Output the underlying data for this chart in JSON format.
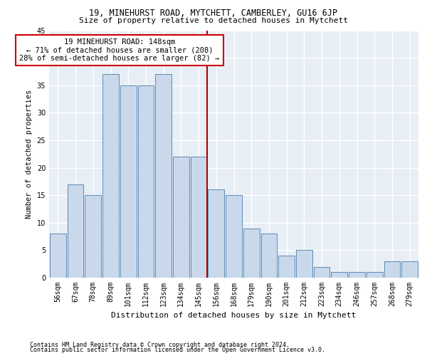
{
  "title1": "19, MINEHURST ROAD, MYTCHETT, CAMBERLEY, GU16 6JP",
  "title2": "Size of property relative to detached houses in Mytchett",
  "xlabel": "Distribution of detached houses by size in Mytchett",
  "ylabel": "Number of detached properties",
  "footer1": "Contains HM Land Registry data © Crown copyright and database right 2024.",
  "footer2": "Contains public sector information licensed under the Open Government Licence v3.0.",
  "categories": [
    "56sqm",
    "67sqm",
    "78sqm",
    "89sqm",
    "101sqm",
    "112sqm",
    "123sqm",
    "134sqm",
    "145sqm",
    "156sqm",
    "168sqm",
    "179sqm",
    "190sqm",
    "201sqm",
    "212sqm",
    "223sqm",
    "234sqm",
    "246sqm",
    "257sqm",
    "268sqm",
    "279sqm"
  ],
  "values": [
    8,
    17,
    15,
    37,
    35,
    35,
    37,
    22,
    22,
    16,
    15,
    9,
    8,
    4,
    5,
    2,
    1,
    1,
    1,
    3,
    3
  ],
  "bar_color": "#c9d9eb",
  "bar_edgecolor": "#5b8ab5",
  "bg_color": "#e8eef5",
  "grid_color": "#ffffff",
  "vline_x": 8.5,
  "vline_color": "#aa0000",
  "annotation_text": "19 MINEHURST ROAD: 148sqm\n← 71% of detached houses are smaller (208)\n28% of semi-detached houses are larger (82) →",
  "annotation_box_color": "#ffffff",
  "annotation_box_edgecolor": "#cc0000",
  "ylim": [
    0,
    45
  ],
  "yticks": [
    0,
    5,
    10,
    15,
    20,
    25,
    30,
    35,
    40,
    45
  ],
  "title1_fontsize": 8.5,
  "title2_fontsize": 8.0,
  "xlabel_fontsize": 8.0,
  "ylabel_fontsize": 7.5,
  "tick_fontsize": 7.0,
  "ann_fontsize": 7.5,
  "footer_fontsize": 6.0
}
